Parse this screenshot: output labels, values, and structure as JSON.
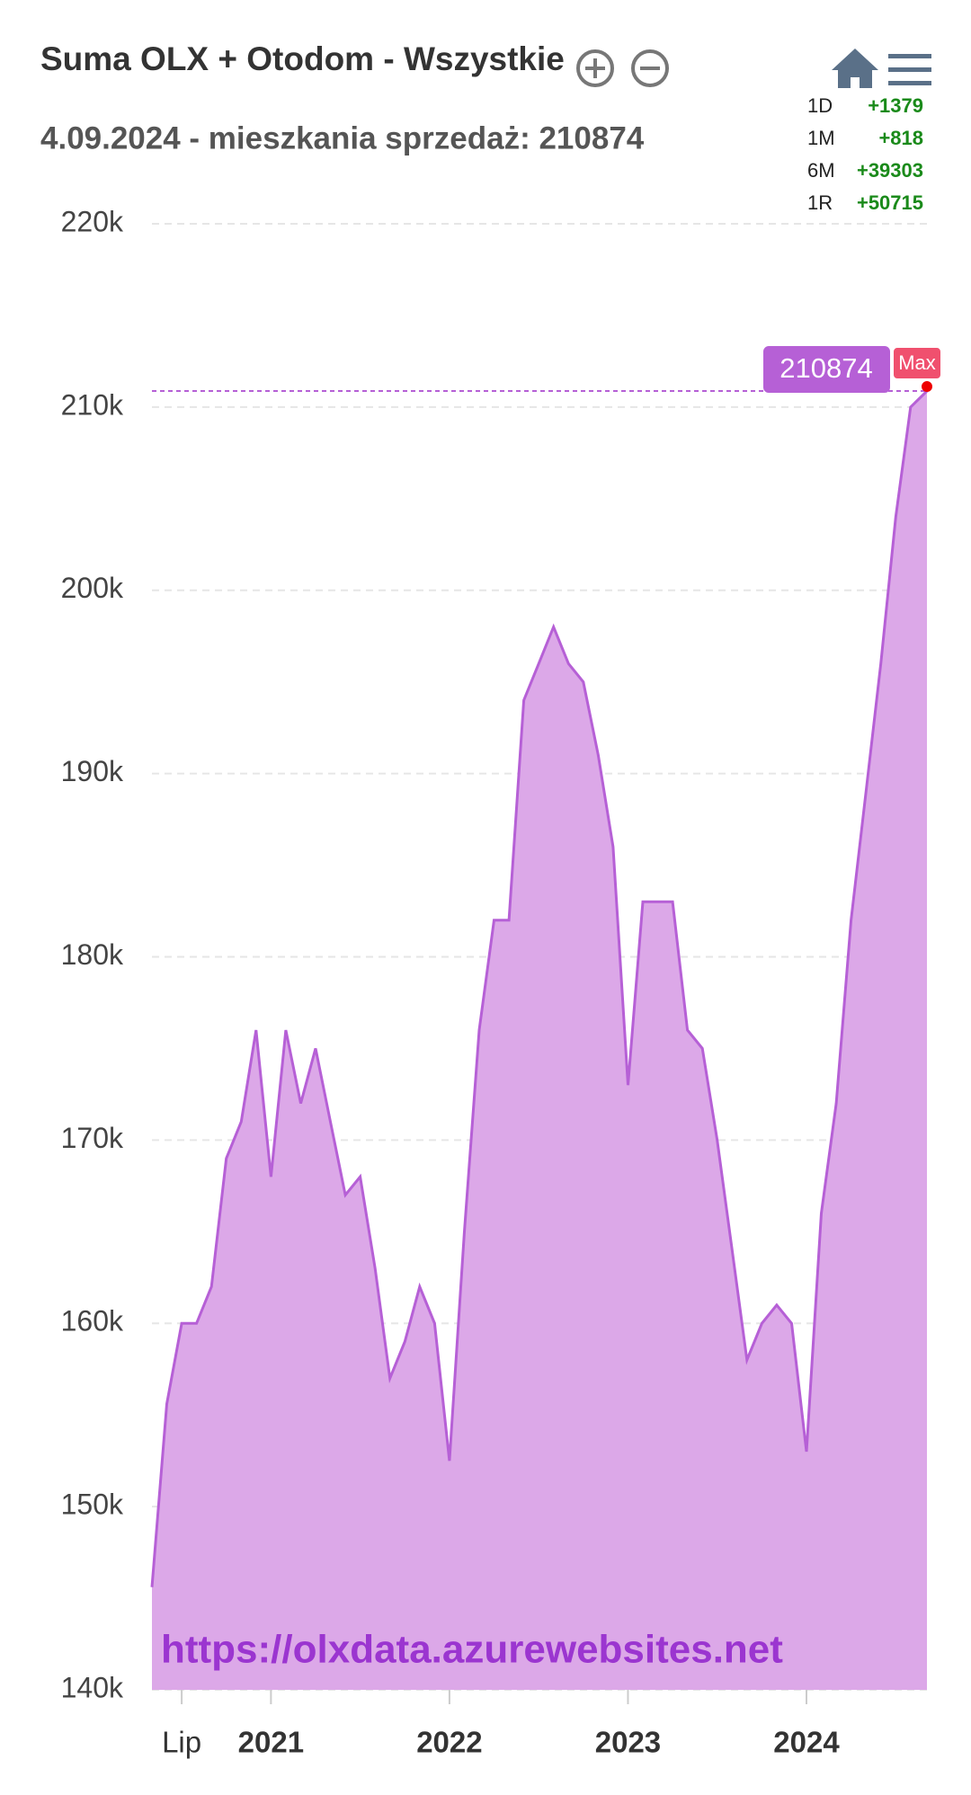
{
  "chart_data": {
    "type": "area",
    "title": "Suma OLX + Otodom - Wszystkie",
    "subtitle": "4.09.2024 - mieszkania sprzedaż: 210874",
    "x": [
      "2020-05",
      "2020-06",
      "2020-07",
      "2020-08",
      "2020-09",
      "2020-10",
      "2020-11",
      "2020-12",
      "2021-01",
      "2021-02",
      "2021-03",
      "2021-04",
      "2021-05",
      "2021-06",
      "2021-07",
      "2021-08",
      "2021-09",
      "2021-10",
      "2021-11",
      "2021-12",
      "2022-01",
      "2022-02",
      "2022-03",
      "2022-04",
      "2022-05",
      "2022-06",
      "2022-07",
      "2022-08",
      "2022-09",
      "2022-10",
      "2022-11",
      "2022-12",
      "2023-01",
      "2023-02",
      "2023-03",
      "2023-04",
      "2023-05",
      "2023-06",
      "2023-07",
      "2023-08",
      "2023-09",
      "2023-10",
      "2023-11",
      "2023-12",
      "2024-01",
      "2024-02",
      "2024-03",
      "2024-04",
      "2024-05",
      "2024-06",
      "2024-07",
      "2024-08",
      "2024-09-04"
    ],
    "values": [
      145600,
      155600,
      160000,
      160000,
      162000,
      169000,
      171000,
      176000,
      168000,
      176000,
      172000,
      175000,
      171000,
      167000,
      168000,
      163000,
      157000,
      159000,
      162000,
      160000,
      152500,
      165000,
      176000,
      182000,
      182000,
      194000,
      196000,
      198000,
      196000,
      195000,
      191000,
      186000,
      173000,
      183000,
      183000,
      183000,
      176000,
      175000,
      170000,
      164000,
      158000,
      160000,
      161000,
      160000,
      153000,
      166000,
      172000,
      182000,
      189000,
      196000,
      204000,
      210000,
      210874
    ],
    "color": "#b660d6",
    "fill_color": "#dca8e8",
    "xlim": [
      "2020-05",
      "2024-09-04"
    ],
    "xticks": [
      {
        "value": "2020-07",
        "label": "Lip"
      },
      "2021",
      "2022",
      "2023",
      "2024"
    ],
    "ylim": [
      140000,
      220000
    ],
    "yticks": [
      {
        "value": 140000,
        "label": "140k"
      },
      {
        "value": 150000,
        "label": "150k"
      },
      {
        "value": 160000,
        "label": "160k"
      },
      {
        "value": 170000,
        "label": "170k"
      },
      {
        "value": 180000,
        "label": "180k"
      },
      {
        "value": 190000,
        "label": "190k"
      },
      {
        "value": 200000,
        "label": "200k"
      },
      {
        "value": 210000,
        "label": "210k"
      },
      {
        "value": 220000,
        "label": "220k"
      }
    ],
    "grid": true,
    "max_label": "Max",
    "watermark": "https://olxdata.azurewebsites.net"
  },
  "stats": [
    {
      "label": "1D",
      "value": "+1379"
    },
    {
      "label": "1M",
      "value": "+818"
    },
    {
      "label": "6M",
      "value": "+39303"
    },
    {
      "label": "1R",
      "value": "+50715"
    }
  ]
}
